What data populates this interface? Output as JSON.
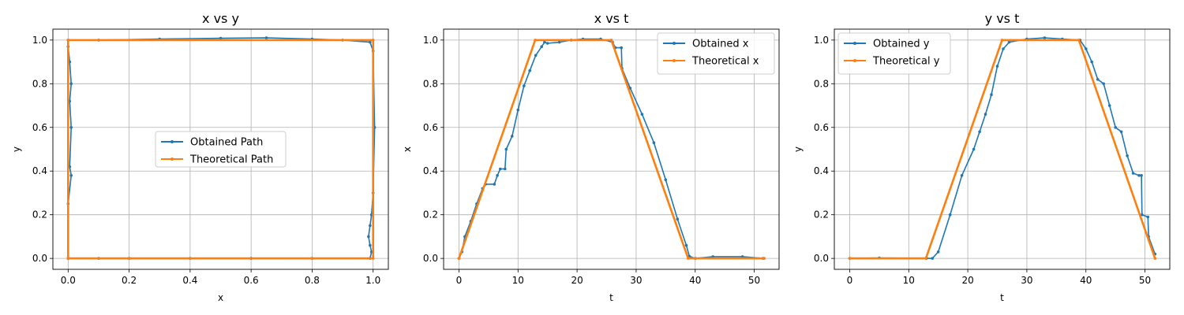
{
  "chart_data": [
    {
      "type": "line",
      "title": "x vs y",
      "xlabel": "x",
      "ylabel": "y",
      "xlim": [
        -0.05,
        1.05
      ],
      "ylim": [
        -0.05,
        1.05
      ],
      "xticks": [
        "0.0",
        "0.2",
        "0.4",
        "0.6",
        "0.8",
        "1.0"
      ],
      "yticks": [
        "0.0",
        "0.2",
        "0.4",
        "0.6",
        "0.8",
        "1.0"
      ],
      "grid": true,
      "legend_position": "center",
      "series": [
        {
          "name": "Obtained Path",
          "color": "#1f77b4",
          "x": [
            0.0,
            0.0,
            0.01,
            0.005,
            0.01,
            0.005,
            0.01,
            0.005,
            0.0,
            0.0,
            0.1,
            0.3,
            0.5,
            0.65,
            0.8,
            0.9,
            0.99,
            1.0,
            1.005,
            1.0,
            0.995,
            0.99,
            0.985,
            0.99,
            0.995,
            0.99,
            0.8,
            0.6,
            0.4,
            0.2,
            0.1,
            0.0
          ],
          "y": [
            0.0,
            0.25,
            0.38,
            0.42,
            0.6,
            0.72,
            0.8,
            0.9,
            0.97,
            1.0,
            1.0,
            1.005,
            1.008,
            1.01,
            1.005,
            1.0,
            0.99,
            0.95,
            0.6,
            0.3,
            0.2,
            0.15,
            0.1,
            0.06,
            0.03,
            0.0,
            0.0,
            0.0,
            0.0,
            0.0,
            0.0,
            0.0
          ]
        },
        {
          "name": "Theoretical Path",
          "color": "#ff7f0e",
          "x": [
            0.0,
            0.0,
            1.0,
            1.0,
            0.0
          ],
          "y": [
            0.0,
            1.0,
            1.0,
            0.0,
            0.0
          ]
        }
      ]
    },
    {
      "type": "line",
      "title": "x vs t",
      "xlabel": "t",
      "ylabel": "x",
      "xlim": [
        -2.6,
        54.2
      ],
      "ylim": [
        -0.05,
        1.05
      ],
      "xticks": [
        "0",
        "10",
        "20",
        "30",
        "40",
        "50"
      ],
      "yticks": [
        "0.0",
        "0.2",
        "0.4",
        "0.6",
        "0.8",
        "1.0"
      ],
      "grid": true,
      "legend_position": "top-right",
      "series": [
        {
          "name": "Obtained x",
          "color": "#1f77b4",
          "x": [
            0,
            0.5,
            1,
            2,
            3,
            4,
            4.5,
            6,
            6.5,
            7,
            7.8,
            8,
            9,
            10,
            11,
            12,
            13,
            14,
            14.5,
            15,
            17,
            19,
            21,
            24,
            26,
            26.5,
            27.5,
            27.6,
            29,
            31,
            33,
            35,
            37,
            38.5,
            39,
            40,
            43,
            48,
            51.5
          ],
          "y": [
            0,
            0.03,
            0.1,
            0.17,
            0.25,
            0.32,
            0.34,
            0.34,
            0.38,
            0.41,
            0.41,
            0.5,
            0.56,
            0.68,
            0.79,
            0.86,
            0.93,
            0.97,
            0.99,
            0.985,
            0.99,
            1.0,
            1.005,
            1.005,
            0.99,
            0.965,
            0.965,
            0.87,
            0.78,
            0.66,
            0.53,
            0.36,
            0.18,
            0.06,
            0.01,
            0.0,
            0.008,
            0.008,
            0.0
          ]
        },
        {
          "name": "Theoretical x",
          "color": "#ff7f0e",
          "x": [
            0,
            12.9,
            25.8,
            38.8,
            51.7
          ],
          "y": [
            0,
            1,
            1,
            0,
            0
          ]
        }
      ]
    },
    {
      "type": "line",
      "title": "y vs t",
      "xlabel": "t",
      "ylabel": "y",
      "xlim": [
        -2.6,
        54.2
      ],
      "ylim": [
        -0.05,
        1.05
      ],
      "xticks": [
        "0",
        "10",
        "20",
        "30",
        "40",
        "50"
      ],
      "yticks": [
        "0.0",
        "0.2",
        "0.4",
        "0.6",
        "0.8",
        "1.0"
      ],
      "grid": true,
      "legend_position": "top-left",
      "series": [
        {
          "name": "Obtained y",
          "color": "#1f77b4",
          "x": [
            0,
            5,
            13,
            14,
            15,
            17,
            19,
            21,
            22,
            23,
            24,
            25,
            26,
            27,
            30,
            33,
            36,
            39,
            40,
            41,
            42,
            43,
            44,
            45,
            46,
            47,
            48,
            49,
            49.4,
            49.5,
            50.5,
            50.6,
            51.7
          ],
          "y": [
            0,
            0.002,
            0.0,
            0.0,
            0.03,
            0.2,
            0.38,
            0.5,
            0.58,
            0.66,
            0.75,
            0.88,
            0.96,
            0.99,
            1.005,
            1.01,
            1.005,
            1.0,
            0.96,
            0.9,
            0.82,
            0.8,
            0.7,
            0.6,
            0.58,
            0.47,
            0.39,
            0.38,
            0.38,
            0.2,
            0.19,
            0.1,
            0.02
          ]
        },
        {
          "name": "Theoretical y",
          "color": "#ff7f0e",
          "x": [
            0,
            12.9,
            25.8,
            38.8,
            51.7
          ],
          "y": [
            0,
            0,
            1,
            1,
            0
          ]
        }
      ]
    }
  ]
}
